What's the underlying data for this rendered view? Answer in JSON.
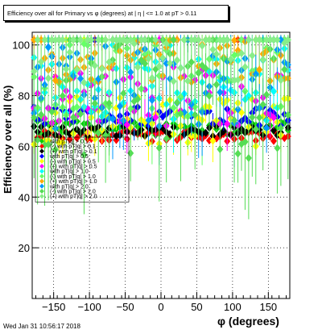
{
  "chart_data": {
    "type": "scatter",
    "title": "Efficiency over all for Primary vs φ (degrees) at | η | <= 1.0 at pT > 0.11",
    "xlabel": "φ (degrees)",
    "ylabel": "Efficiency over all (%)",
    "xlim": [
      -180,
      180
    ],
    "ylim": [
      0,
      105
    ],
    "xticks": [
      -150,
      -100,
      -50,
      0,
      50,
      100,
      150
    ],
    "yticks": [
      20,
      40,
      60,
      80,
      100
    ],
    "xtick_labels": [
      "−150",
      "−100",
      "−50",
      "0",
      "50",
      "100",
      "150"
    ],
    "ytick_labels": [
      "20",
      "40",
      "60",
      "80",
      "100"
    ],
    "grid": true,
    "legend_position": "left-middle",
    "series": [
      {
        "name": "with pT|q| > 0.1",
        "color": "#00cc00",
        "values_profile": {
          "mean": 67,
          "spread": 3,
          "errbar": 1
        }
      },
      {
        "name": "(-) with pT|q| > 0.1",
        "color": "#ff0000",
        "values_profile": {
          "mean": 64,
          "spread": 2,
          "errbar": 1
        }
      },
      {
        "name": "(+) with pT|q| > 0.1",
        "color": "#000000",
        "values_profile": {
          "mean": 66,
          "spread": 2,
          "errbar": 1
        }
      },
      {
        "name": "with pT|q| > 0.5",
        "color": "#0000ff",
        "values_profile": {
          "mean": 72,
          "spread": 4,
          "errbar": 3
        }
      },
      {
        "name": "(-) with pT|q| > 0.5",
        "color": "#ffff00",
        "values_profile": {
          "mean": 70,
          "spread": 10,
          "errbar": 6
        }
      },
      {
        "name": "(+) with pT|q| > 0.5",
        "color": "#ff00ff",
        "values_profile": {
          "mean": 80,
          "spread": 12,
          "errbar": 8
        }
      },
      {
        "name": "with pT|q| > 1.0",
        "color": "#00ffff",
        "values_profile": {
          "mean": 85,
          "spread": 15,
          "errbar": 10
        }
      },
      {
        "name": "(-) with pT|q| > 1.0",
        "color": "#66ff66",
        "values_profile": {
          "mean": 90,
          "spread": 20,
          "errbar": 15
        }
      },
      {
        "name": "(+) with pT|q| > 1.0",
        "color": "#ffaa00",
        "values_profile": {
          "mean": 95,
          "spread": 10,
          "errbar": 8
        }
      },
      {
        "name": "with pT|q| > 2.0",
        "color": "#0099ff",
        "values_profile": {
          "mean": 85,
          "spread": 18,
          "errbar": 12
        }
      },
      {
        "name": "(-) with pT|q| > 2.0",
        "color": "#55dd55",
        "values_profile": {
          "mean": 80,
          "spread": 25,
          "errbar": 18
        }
      },
      {
        "name": "(+) with pT|q| > 2.0",
        "color": "#88ee88",
        "values_profile": {
          "mean": 98,
          "spread": 15,
          "errbar": 10
        }
      }
    ]
  },
  "footer": {
    "timestamp": "Wed Jan 31 10:56:17 2018"
  }
}
